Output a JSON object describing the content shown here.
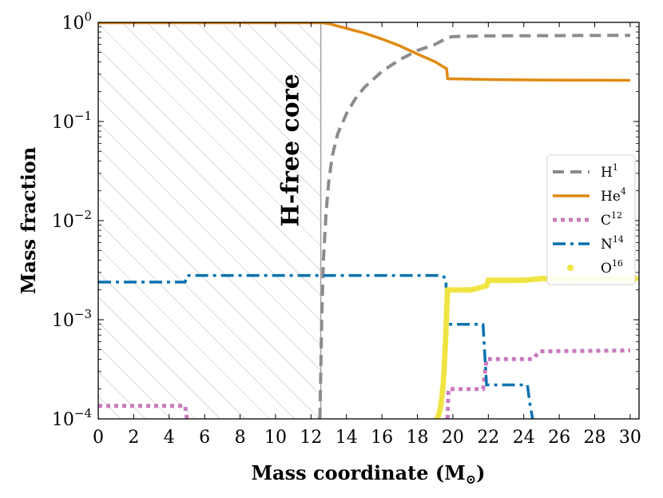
{
  "chart_data": {
    "type": "line",
    "title": "",
    "xlabel": "Mass coordinate (M",
    "xlabel_symbol": "⊙",
    "xlabel_close": ")",
    "ylabel": "Mass fraction",
    "xlim": [
      0,
      30.5
    ],
    "ylim": [
      0.0001,
      1.0
    ],
    "yscale": "log",
    "xticks": [
      0,
      2,
      4,
      6,
      8,
      10,
      12,
      14,
      16,
      18,
      20,
      22,
      24,
      26,
      28,
      30
    ],
    "yticks": [
      {
        "value": 1,
        "base": "10",
        "exp": "0"
      },
      {
        "value": 0.1,
        "base": "10",
        "exp": "−1"
      },
      {
        "value": 0.01,
        "base": "10",
        "exp": "−2"
      },
      {
        "value": 0.001,
        "base": "10",
        "exp": "−3"
      },
      {
        "value": 0.0001,
        "base": "10",
        "exp": "−4"
      }
    ],
    "annotation": {
      "text": "H-free core",
      "region_x": [
        0,
        12.55
      ]
    },
    "legend_position": "right",
    "series": [
      {
        "name": "H",
        "exp": "1",
        "color": "#8c8c8c",
        "style": "dashed",
        "points": [
          [
            12.5,
            0.0001
          ],
          [
            12.55,
            0.0003
          ],
          [
            12.6,
            0.001
          ],
          [
            12.7,
            0.004
          ],
          [
            12.85,
            0.012
          ],
          [
            13.0,
            0.025
          ],
          [
            13.2,
            0.045
          ],
          [
            13.5,
            0.075
          ],
          [
            14.0,
            0.12
          ],
          [
            14.5,
            0.17
          ],
          [
            15.0,
            0.22
          ],
          [
            16.0,
            0.32
          ],
          [
            17.0,
            0.42
          ],
          [
            18.0,
            0.52
          ],
          [
            19.0,
            0.6
          ],
          [
            19.7,
            0.7
          ],
          [
            20.0,
            0.72
          ],
          [
            22.0,
            0.73
          ],
          [
            30.0,
            0.74
          ]
        ]
      },
      {
        "name": "He",
        "exp": "4",
        "color": "#e08a12",
        "style": "solid",
        "points": [
          [
            0,
            0.99
          ],
          [
            12.6,
            0.99
          ],
          [
            13.0,
            0.97
          ],
          [
            14.0,
            0.87
          ],
          [
            15.0,
            0.78
          ],
          [
            16.0,
            0.68
          ],
          [
            17.0,
            0.58
          ],
          [
            18.0,
            0.48
          ],
          [
            19.0,
            0.4
          ],
          [
            19.65,
            0.34
          ],
          [
            19.7,
            0.27
          ],
          [
            22.0,
            0.265
          ],
          [
            25.0,
            0.262
          ],
          [
            30.0,
            0.26
          ]
        ]
      },
      {
        "name": "C",
        "exp": "12",
        "color": "#cc79c0",
        "style": "dotted",
        "points": [
          [
            0,
            0.000135
          ],
          [
            4.9,
            0.000135
          ],
          [
            5.0,
            0.0001
          ]
        ],
        "points2": [
          [
            19.7,
            0.0001
          ],
          [
            19.75,
            0.0002
          ],
          [
            21.7,
            0.0002
          ],
          [
            21.9,
            0.0004
          ],
          [
            24.5,
            0.0004
          ],
          [
            24.9,
            0.00048
          ],
          [
            30.0,
            0.00049
          ]
        ]
      },
      {
        "name": "N",
        "exp": "14",
        "color": "#0a72b0",
        "style": "dashdot",
        "points": [
          [
            0,
            0.0024
          ],
          [
            4.9,
            0.0024
          ],
          [
            5.0,
            0.0028
          ],
          [
            19.4,
            0.0028
          ],
          [
            19.6,
            0.0026
          ],
          [
            19.7,
            0.0009
          ],
          [
            21.7,
            0.0009
          ],
          [
            21.9,
            0.00022
          ],
          [
            24.2,
            0.00022
          ],
          [
            24.35,
            0.00014
          ],
          [
            24.5,
            0.0001
          ]
        ]
      },
      {
        "name": "O",
        "exp": "16",
        "color": "#f0e442",
        "style": "dots",
        "points": [
          [
            19.1,
            0.0001
          ],
          [
            19.2,
            0.00011
          ],
          [
            19.3,
            0.00013
          ],
          [
            19.35,
            0.00015
          ],
          [
            19.4,
            0.00018
          ],
          [
            19.45,
            0.00022
          ],
          [
            19.5,
            0.0003
          ],
          [
            19.55,
            0.00045
          ],
          [
            19.6,
            0.0007
          ],
          [
            19.65,
            0.0012
          ],
          [
            19.7,
            0.002
          ],
          [
            20.5,
            0.002
          ],
          [
            21.0,
            0.002
          ],
          [
            21.5,
            0.0021
          ],
          [
            21.9,
            0.0022
          ],
          [
            22.0,
            0.0025
          ],
          [
            23.0,
            0.0025
          ],
          [
            24.0,
            0.0025
          ],
          [
            25.0,
            0.0026
          ],
          [
            26.0,
            0.0026
          ],
          [
            27.0,
            0.0026
          ],
          [
            28.0,
            0.0026
          ],
          [
            29.0,
            0.0026
          ],
          [
            30.5,
            0.0026
          ]
        ]
      }
    ]
  }
}
